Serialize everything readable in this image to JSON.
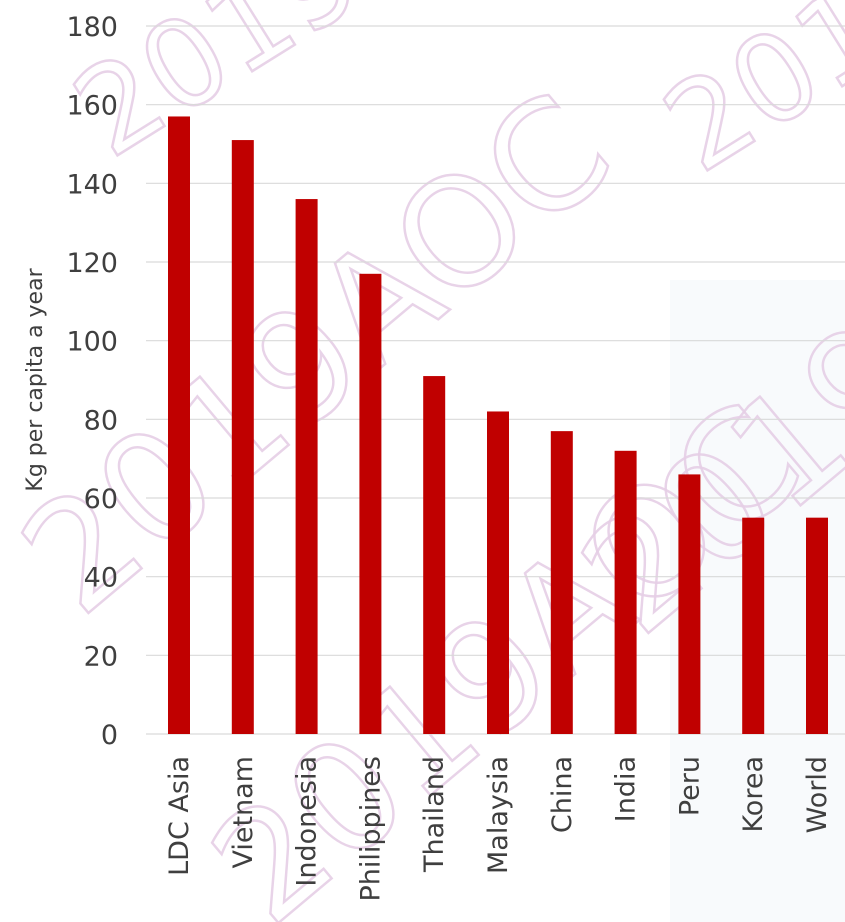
{
  "chart_data": {
    "type": "bar",
    "categories": [
      "LDC Asia",
      "Vietnam",
      "Indonesia",
      "Philippines",
      "Thailand",
      "Malaysia",
      "China",
      "India",
      "Peru",
      "Korea",
      "World"
    ],
    "values": [
      157,
      151,
      136,
      117,
      91,
      82,
      77,
      72,
      66,
      55,
      55
    ],
    "title": "",
    "xlabel": "",
    "ylabel": "Kg per capita a year",
    "ylim": [
      0,
      180
    ],
    "yticks": [
      0,
      20,
      40,
      60,
      80,
      100,
      120,
      140,
      160,
      180
    ],
    "grid": true,
    "legend": "none",
    "bar_color": "#c00000",
    "grid_color": "#d9d9d9",
    "watermark_text": "2019AOC",
    "watermark_color": "#e6cfe6"
  }
}
